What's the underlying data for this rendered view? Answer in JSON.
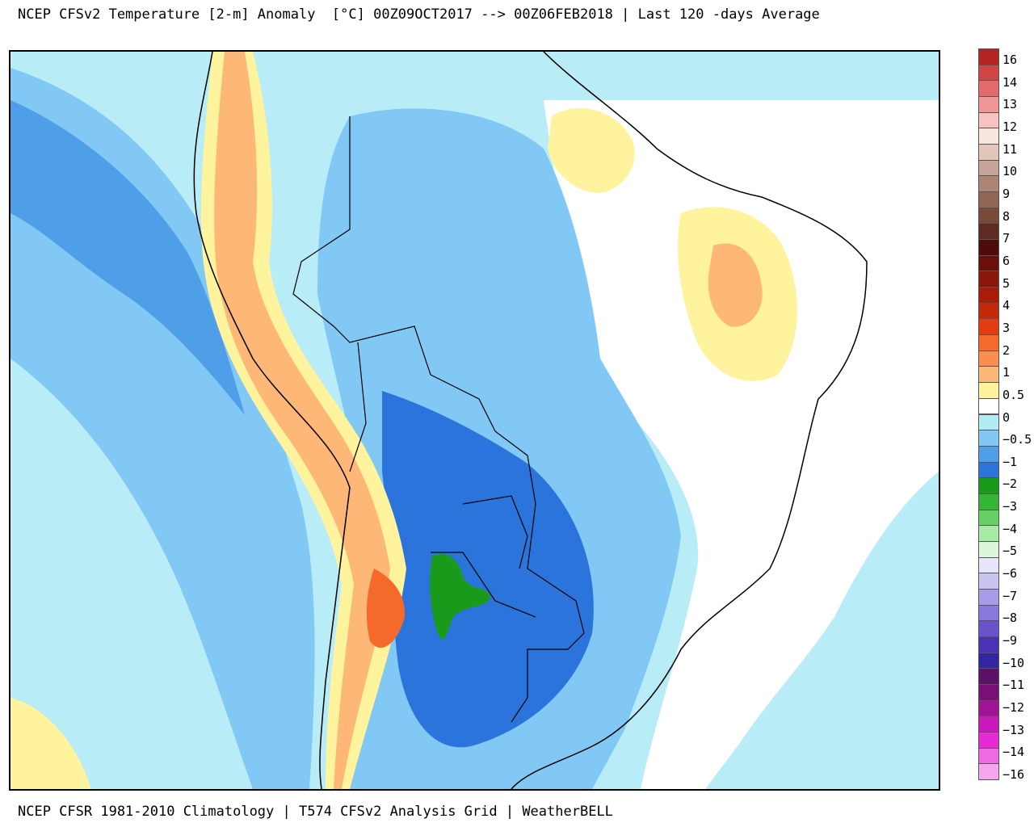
{
  "title": "NCEP CFSv2 Temperature [2-m] Anomaly  [°C] 00Z09OCT2017 --> 00Z06FEB2018 | Last 120 -days Average",
  "footer": "NCEP CFSR 1981-2010 Climatology | T574 CFSv2 Analysis Grid | WeatherBELL",
  "legend": {
    "levels": [
      {
        "label": "16",
        "color": "#b32424"
      },
      {
        "label": "14",
        "color": "#d04545"
      },
      {
        "label": "13",
        "color": "#e26a6a"
      },
      {
        "label": "12",
        "color": "#f09696"
      },
      {
        "label": "11",
        "color": "#f9c2c2"
      },
      {
        "label": "10",
        "color": "#fbe5df"
      },
      {
        "label": "9",
        "color": "#eed9cf"
      },
      {
        "label": "8",
        "color": "#dcbdb0"
      },
      {
        "label": "7",
        "color": "#c7a18f"
      },
      {
        "label": "6",
        "color": "#ad8572"
      },
      {
        "label": "5",
        "color": "#8f6654"
      },
      {
        "label": "4",
        "color": "#6e4636"
      },
      {
        "label": "3",
        "color": "#4d1d16"
      },
      {
        "label": "2",
        "color": "#6b0f0b"
      },
      {
        "label": "1",
        "color": "#8a1509"
      },
      {
        "label": "0.5",
        "color": "#a81c0a"
      },
      {
        "label": "0",
        "color": "#c5290c"
      },
      {
        "label": "−0.5",
        "color": "#e23c10"
      },
      {
        "label": "−1",
        "color": "#f56a2a"
      },
      {
        "label": "−2",
        "color": "#fb8e4e"
      },
      {
        "label": "−3",
        "color": "#fdb877"
      },
      {
        "label": "−4",
        "color": "#fff39e"
      },
      {
        "label": "−5",
        "color": "#ffffff"
      },
      {
        "label": "−6",
        "color": "#b4ecf6"
      },
      {
        "label": "−7",
        "color": "#82c8f4"
      },
      {
        "label": "−8",
        "color": "#4f9ee8"
      },
      {
        "label": "−9",
        "color": "#2a74dc"
      },
      {
        "label": "−10",
        "color": "#1a9a1a"
      },
      {
        "label": "−11",
        "color": "#33b633"
      },
      {
        "label": "−12",
        "color": "#66d066"
      },
      {
        "label": "−13",
        "color": "#a6eaa6"
      },
      {
        "label": "−14",
        "color": "#dcf6dc"
      },
      {
        "label": "−16",
        "color": "#e6e6fa"
      }
    ],
    "tick_labels": [
      "16",
      "14",
      "13",
      "12",
      "11",
      "10",
      "9",
      "8",
      "7",
      "6",
      "5",
      "4",
      "3",
      "2",
      "1",
      "0.5",
      "0",
      "−0.5",
      "−1",
      "−2",
      "−3",
      "−4",
      "−5",
      "−6",
      "−7",
      "−8",
      "−9",
      "−10",
      "−11",
      "−12",
      "−13",
      "−14",
      "−16"
    ],
    "lower_colors": [
      "#c9c4f2",
      "#a79ce8",
      "#8877dc",
      "#6a52cc",
      "#4a32b6",
      "#3226a0",
      "#5a1268",
      "#7a0f7a",
      "#a01496",
      "#c81aba",
      "#e62ad6",
      "#f06ae6",
      "#f6a6ee"
    ]
  },
  "colors": {
    "ocean_light": "#b8ecf6",
    "blue_mid": "#82c8f4",
    "blue_dark": "#4f9ee8",
    "blue_deep": "#2a74dc",
    "green": "#1a9a1a",
    "white": "#ffffff",
    "yellow": "#fff39e",
    "orange_light": "#fdb877",
    "orange": "#fb8e4e",
    "orange_dark": "#f56a2a",
    "red": "#e23c10",
    "border": "#000000",
    "lakes": "#9a9a9a"
  }
}
